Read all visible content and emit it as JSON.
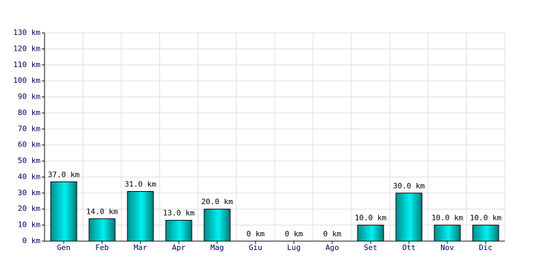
{
  "chart_data": {
    "type": "bar",
    "categories": [
      "Gen",
      "Feb",
      "Mar",
      "Apr",
      "Mag",
      "Giu",
      "Lug",
      "Ago",
      "Set",
      "Ott",
      "Nov",
      "Dic"
    ],
    "values": [
      37,
      14,
      31,
      13,
      20,
      0,
      0,
      0,
      10,
      30,
      10,
      10
    ],
    "value_labels": [
      "37.0 km",
      "14.0 km",
      "31.0 km",
      "13.0 km",
      "20.0 km",
      "0 km",
      "0 km",
      "0 km",
      "10.0 km",
      "30.0 km",
      "10.0 km",
      "10.0 km"
    ],
    "color": "#00f0f0",
    "ylim": [
      0,
      130
    ],
    "yticks": [
      {
        "value": 0,
        "label": "0 km"
      },
      {
        "value": 10,
        "label": "10 km"
      },
      {
        "value": 20,
        "label": "20 km"
      },
      {
        "value": 30,
        "label": "30 km"
      },
      {
        "value": 40,
        "label": "40 km"
      },
      {
        "value": 50,
        "label": "50 km"
      },
      {
        "value": 60,
        "label": "60 km"
      },
      {
        "value": 70,
        "label": "70 km"
      },
      {
        "value": 80,
        "label": "80 km"
      },
      {
        "value": 90,
        "label": "90 km"
      },
      {
        "value": 100,
        "label": "100 km"
      },
      {
        "value": 110,
        "label": "110 km"
      },
      {
        "value": 120,
        "label": "120 km"
      },
      {
        "value": 130,
        "label": "130 km"
      }
    ],
    "grid": true
  }
}
